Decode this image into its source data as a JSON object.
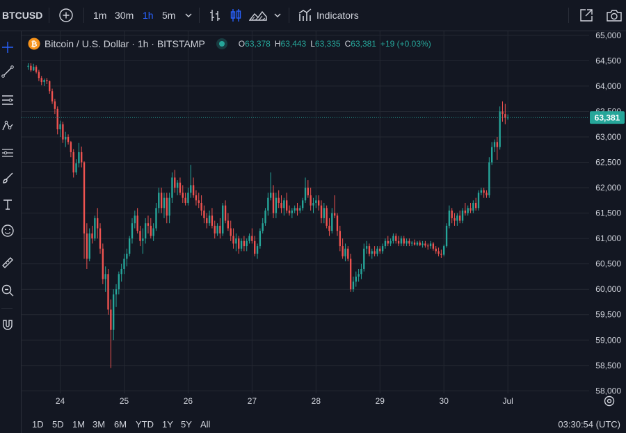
{
  "toolbar": {
    "symbol": "BTCUSD",
    "intervals": [
      "1m",
      "30m",
      "1h",
      "5m"
    ],
    "active_interval": "1h",
    "indicators_label": "Indicators"
  },
  "legend": {
    "title": "Bitcoin / U.S. Dollar · 1h · BITSTAMP",
    "o_label": "O",
    "o_value": "63,378",
    "h_label": "H",
    "h_value": "63,443",
    "l_label": "L",
    "l_value": "63,335",
    "c_label": "C",
    "c_value": "63,381",
    "change": "+19 (+0.03%)"
  },
  "bottom": {
    "ranges": [
      "1D",
      "5D",
      "1M",
      "3M",
      "6M",
      "YTD",
      "1Y",
      "5Y",
      "All"
    ],
    "clock": "03:30:54 (UTC)"
  },
  "colors": {
    "up": "#26a69a",
    "down": "#ef5350",
    "background": "#131722",
    "grid": "#242832",
    "text": "#d1d4dc",
    "accent": "#2962ff"
  },
  "icons": [
    "plus-circle-icon",
    "chevron-down-icon",
    "bar-style-icon",
    "candle-style-icon",
    "area-style-icon",
    "indicators-icon",
    "fullscreen-icon",
    "camera-icon",
    "crosshair-icon",
    "trend-line-icon",
    "fib-icon",
    "pattern-icon",
    "measure-icon",
    "brush-icon",
    "text-icon",
    "emoji-icon",
    "ruler-icon",
    "zoom-icon",
    "magnet-icon",
    "settings-icon",
    "bitcoin-icon"
  ],
  "chart_data": {
    "type": "candlestick",
    "symbol": "Bitcoin / U.S. Dollar",
    "interval": "1h",
    "exchange": "BITSTAMP",
    "y_axis": {
      "ticks": [
        58000,
        58500,
        59000,
        59500,
        60000,
        60500,
        61000,
        61500,
        62000,
        62500,
        63000,
        63500,
        64000,
        64500,
        65000
      ],
      "tick_labels": [
        "58,000",
        "58,500",
        "59,000",
        "59,500",
        "60,000",
        "60,500",
        "61,000",
        "61,500",
        "62,000",
        "62,500",
        "63,000",
        "63,500",
        "64,000",
        "64,500",
        "65,000"
      ],
      "range": [
        57950,
        65080
      ]
    },
    "x_axis": {
      "tick_labels": [
        "24",
        "25",
        "26",
        "27",
        "28",
        "29",
        "30",
        "Jul"
      ],
      "range_hours": [
        -14.5,
        198.5
      ]
    },
    "last_price": 63381,
    "last_price_label": "63,381",
    "grid": true,
    "candles": [
      {
        "o": 64380,
        "h": 64450,
        "l": 64320,
        "c": 64400
      },
      {
        "o": 64400,
        "h": 64450,
        "l": 64280,
        "c": 64310
      },
      {
        "o": 64310,
        "h": 64440,
        "l": 64300,
        "c": 64380
      },
      {
        "o": 64380,
        "h": 64410,
        "l": 64250,
        "c": 64280
      },
      {
        "o": 64280,
        "h": 64320,
        "l": 64100,
        "c": 64160
      },
      {
        "o": 64160,
        "h": 64200,
        "l": 64020,
        "c": 64080
      },
      {
        "o": 64080,
        "h": 64150,
        "l": 64000,
        "c": 64120
      },
      {
        "o": 64120,
        "h": 64160,
        "l": 64040,
        "c": 64100
      },
      {
        "o": 64100,
        "h": 64110,
        "l": 63850,
        "c": 63900
      },
      {
        "o": 63900,
        "h": 63950,
        "l": 63650,
        "c": 63700
      },
      {
        "o": 63700,
        "h": 63750,
        "l": 63450,
        "c": 63550
      },
      {
        "o": 63550,
        "h": 63600,
        "l": 63050,
        "c": 63150
      },
      {
        "o": 63150,
        "h": 63320,
        "l": 63000,
        "c": 63250
      },
      {
        "o": 63250,
        "h": 63300,
        "l": 62880,
        "c": 62950
      },
      {
        "o": 62950,
        "h": 63100,
        "l": 62800,
        "c": 63000
      },
      {
        "o": 63000,
        "h": 63050,
        "l": 62850,
        "c": 62900
      },
      {
        "o": 62900,
        "h": 62920,
        "l": 62600,
        "c": 62700
      },
      {
        "o": 62700,
        "h": 62760,
        "l": 62200,
        "c": 62300
      },
      {
        "o": 62300,
        "h": 62560,
        "l": 62250,
        "c": 62480
      },
      {
        "o": 62480,
        "h": 62880,
        "l": 62400,
        "c": 62700
      },
      {
        "o": 62700,
        "h": 62810,
        "l": 62400,
        "c": 62500
      },
      {
        "o": 62500,
        "h": 62520,
        "l": 60600,
        "c": 61100
      },
      {
        "o": 61100,
        "h": 61300,
        "l": 60400,
        "c": 60600
      },
      {
        "o": 60600,
        "h": 61200,
        "l": 60550,
        "c": 61100
      },
      {
        "o": 61100,
        "h": 61250,
        "l": 60900,
        "c": 61000
      },
      {
        "o": 61000,
        "h": 61450,
        "l": 60950,
        "c": 61400
      },
      {
        "o": 61400,
        "h": 61600,
        "l": 61000,
        "c": 61200
      },
      {
        "o": 61200,
        "h": 61300,
        "l": 60700,
        "c": 60800
      },
      {
        "o": 60800,
        "h": 60900,
        "l": 60100,
        "c": 60200
      },
      {
        "o": 60200,
        "h": 60450,
        "l": 59950,
        "c": 60300
      },
      {
        "o": 60300,
        "h": 60400,
        "l": 59500,
        "c": 59600
      },
      {
        "o": 59600,
        "h": 59800,
        "l": 58450,
        "c": 59200
      },
      {
        "o": 59200,
        "h": 60000,
        "l": 59000,
        "c": 59900
      },
      {
        "o": 59900,
        "h": 60100,
        "l": 59650,
        "c": 60000
      },
      {
        "o": 60000,
        "h": 60350,
        "l": 59900,
        "c": 60300
      },
      {
        "o": 60300,
        "h": 60500,
        "l": 60150,
        "c": 60400
      },
      {
        "o": 60400,
        "h": 60700,
        "l": 60300,
        "c": 60600
      },
      {
        "o": 60600,
        "h": 60800,
        "l": 60450,
        "c": 60700
      },
      {
        "o": 60700,
        "h": 61050,
        "l": 60650,
        "c": 61000
      },
      {
        "o": 61000,
        "h": 61400,
        "l": 60900,
        "c": 61300
      },
      {
        "o": 61300,
        "h": 61550,
        "l": 61200,
        "c": 61450
      },
      {
        "o": 61450,
        "h": 61600,
        "l": 61100,
        "c": 61150
      },
      {
        "o": 61150,
        "h": 61250,
        "l": 60850,
        "c": 60950
      },
      {
        "o": 60950,
        "h": 61200,
        "l": 60700,
        "c": 61000
      },
      {
        "o": 61000,
        "h": 61400,
        "l": 60900,
        "c": 61300
      },
      {
        "o": 61300,
        "h": 61450,
        "l": 61100,
        "c": 61250
      },
      {
        "o": 61250,
        "h": 61400,
        "l": 61000,
        "c": 61050
      },
      {
        "o": 61050,
        "h": 61300,
        "l": 60950,
        "c": 61200
      },
      {
        "o": 61200,
        "h": 61700,
        "l": 61150,
        "c": 61600
      },
      {
        "o": 61600,
        "h": 62000,
        "l": 61500,
        "c": 61900
      },
      {
        "o": 61900,
        "h": 62000,
        "l": 61500,
        "c": 61600
      },
      {
        "o": 61600,
        "h": 61900,
        "l": 61400,
        "c": 61800
      },
      {
        "o": 61800,
        "h": 61900,
        "l": 61300,
        "c": 61450
      },
      {
        "o": 61450,
        "h": 61900,
        "l": 61300,
        "c": 61800
      },
      {
        "o": 61800,
        "h": 62300,
        "l": 61700,
        "c": 62200
      },
      {
        "o": 62200,
        "h": 62350,
        "l": 61900,
        "c": 62000
      },
      {
        "o": 62000,
        "h": 62150,
        "l": 61850,
        "c": 62100
      },
      {
        "o": 62100,
        "h": 62200,
        "l": 61850,
        "c": 61900
      },
      {
        "o": 61900,
        "h": 62050,
        "l": 61700,
        "c": 61800
      },
      {
        "o": 61800,
        "h": 61900,
        "l": 61650,
        "c": 61700
      },
      {
        "o": 61700,
        "h": 62000,
        "l": 61650,
        "c": 61900
      },
      {
        "o": 61900,
        "h": 62450,
        "l": 61800,
        "c": 62050
      },
      {
        "o": 62050,
        "h": 62200,
        "l": 61800,
        "c": 61850
      },
      {
        "o": 61850,
        "h": 61950,
        "l": 61650,
        "c": 61750
      },
      {
        "o": 61750,
        "h": 61900,
        "l": 61600,
        "c": 61700
      },
      {
        "o": 61700,
        "h": 61850,
        "l": 61450,
        "c": 61550
      },
      {
        "o": 61550,
        "h": 61650,
        "l": 61300,
        "c": 61400
      },
      {
        "o": 61400,
        "h": 61500,
        "l": 61200,
        "c": 61300
      },
      {
        "o": 61300,
        "h": 61550,
        "l": 61250,
        "c": 61450
      },
      {
        "o": 61450,
        "h": 61600,
        "l": 61200,
        "c": 61250
      },
      {
        "o": 61250,
        "h": 61350,
        "l": 61000,
        "c": 61100
      },
      {
        "o": 61100,
        "h": 61300,
        "l": 61050,
        "c": 61250
      },
      {
        "o": 61250,
        "h": 61400,
        "l": 61000,
        "c": 61100
      },
      {
        "o": 61100,
        "h": 61700,
        "l": 61050,
        "c": 61650
      },
      {
        "o": 61650,
        "h": 61750,
        "l": 61300,
        "c": 61350
      },
      {
        "o": 61350,
        "h": 61500,
        "l": 61150,
        "c": 61200
      },
      {
        "o": 61200,
        "h": 61350,
        "l": 60950,
        "c": 61050
      },
      {
        "o": 61050,
        "h": 61200,
        "l": 60800,
        "c": 60900
      },
      {
        "o": 60900,
        "h": 61100,
        "l": 60750,
        "c": 61000
      },
      {
        "o": 61000,
        "h": 61050,
        "l": 60700,
        "c": 60800
      },
      {
        "o": 60800,
        "h": 61000,
        "l": 60750,
        "c": 60950
      },
      {
        "o": 60950,
        "h": 61050,
        "l": 60750,
        "c": 60850
      },
      {
        "o": 60850,
        "h": 61000,
        "l": 60750,
        "c": 60950
      },
      {
        "o": 60950,
        "h": 61100,
        "l": 60900,
        "c": 61050
      },
      {
        "o": 61050,
        "h": 61200,
        "l": 60900,
        "c": 60950
      },
      {
        "o": 60950,
        "h": 61050,
        "l": 60650,
        "c": 60700
      },
      {
        "o": 60700,
        "h": 60900,
        "l": 60600,
        "c": 60850
      },
      {
        "o": 60850,
        "h": 61200,
        "l": 60800,
        "c": 61150
      },
      {
        "o": 61150,
        "h": 61400,
        "l": 61100,
        "c": 61300
      },
      {
        "o": 61300,
        "h": 61600,
        "l": 61250,
        "c": 61550
      },
      {
        "o": 61550,
        "h": 61900,
        "l": 61450,
        "c": 61800
      },
      {
        "o": 61800,
        "h": 62300,
        "l": 61750,
        "c": 61900
      },
      {
        "o": 61900,
        "h": 62050,
        "l": 61400,
        "c": 61500
      },
      {
        "o": 61500,
        "h": 61900,
        "l": 61400,
        "c": 61800
      },
      {
        "o": 61800,
        "h": 61950,
        "l": 61600,
        "c": 61700
      },
      {
        "o": 61700,
        "h": 61850,
        "l": 61500,
        "c": 61600
      },
      {
        "o": 61600,
        "h": 61800,
        "l": 61450,
        "c": 61750
      },
      {
        "o": 61750,
        "h": 61900,
        "l": 61500,
        "c": 61550
      },
      {
        "o": 61550,
        "h": 61650,
        "l": 61450,
        "c": 61500
      },
      {
        "o": 61500,
        "h": 61600,
        "l": 61400,
        "c": 61550
      },
      {
        "o": 61550,
        "h": 61650,
        "l": 61500,
        "c": 61600
      },
      {
        "o": 61600,
        "h": 61700,
        "l": 61450,
        "c": 61550
      },
      {
        "o": 61550,
        "h": 61650,
        "l": 61500,
        "c": 61600
      },
      {
        "o": 61600,
        "h": 61800,
        "l": 61550,
        "c": 61750
      },
      {
        "o": 61750,
        "h": 62200,
        "l": 61700,
        "c": 62000
      },
      {
        "o": 62000,
        "h": 62150,
        "l": 61800,
        "c": 61850
      },
      {
        "o": 61850,
        "h": 62000,
        "l": 61550,
        "c": 61650
      },
      {
        "o": 61650,
        "h": 61800,
        "l": 61500,
        "c": 61700
      },
      {
        "o": 61700,
        "h": 61850,
        "l": 61600,
        "c": 61750
      },
      {
        "o": 61750,
        "h": 61850,
        "l": 61550,
        "c": 61650
      },
      {
        "o": 61650,
        "h": 61750,
        "l": 61300,
        "c": 61400
      },
      {
        "o": 61400,
        "h": 61700,
        "l": 61300,
        "c": 61600
      },
      {
        "o": 61600,
        "h": 61650,
        "l": 61200,
        "c": 61250
      },
      {
        "o": 61250,
        "h": 61400,
        "l": 61050,
        "c": 61150
      },
      {
        "o": 61150,
        "h": 61600,
        "l": 61100,
        "c": 61500
      },
      {
        "o": 61500,
        "h": 61850,
        "l": 61400,
        "c": 61450
      },
      {
        "o": 61450,
        "h": 61500,
        "l": 61050,
        "c": 61150
      },
      {
        "o": 61150,
        "h": 61250,
        "l": 60750,
        "c": 60850
      },
      {
        "o": 60850,
        "h": 61000,
        "l": 60600,
        "c": 60650
      },
      {
        "o": 60650,
        "h": 60900,
        "l": 60550,
        "c": 60800
      },
      {
        "o": 60800,
        "h": 60850,
        "l": 60550,
        "c": 60600
      },
      {
        "o": 60600,
        "h": 60700,
        "l": 59950,
        "c": 60000
      },
      {
        "o": 60000,
        "h": 60250,
        "l": 59950,
        "c": 60150
      },
      {
        "o": 60150,
        "h": 60350,
        "l": 60050,
        "c": 60250
      },
      {
        "o": 60250,
        "h": 60400,
        "l": 60150,
        "c": 60300
      },
      {
        "o": 60300,
        "h": 60500,
        "l": 60200,
        "c": 60400
      },
      {
        "o": 60400,
        "h": 60900,
        "l": 60350,
        "c": 60800
      },
      {
        "o": 60800,
        "h": 60950,
        "l": 60700,
        "c": 60850
      },
      {
        "o": 60850,
        "h": 60900,
        "l": 60650,
        "c": 60700
      },
      {
        "o": 60700,
        "h": 60800,
        "l": 60600,
        "c": 60750
      },
      {
        "o": 60750,
        "h": 60850,
        "l": 60650,
        "c": 60700
      },
      {
        "o": 60700,
        "h": 60850,
        "l": 60650,
        "c": 60800
      },
      {
        "o": 60800,
        "h": 60850,
        "l": 60700,
        "c": 60750
      },
      {
        "o": 60750,
        "h": 60900,
        "l": 60700,
        "c": 60850
      },
      {
        "o": 60850,
        "h": 61000,
        "l": 60800,
        "c": 60950
      },
      {
        "o": 60950,
        "h": 61050,
        "l": 60850,
        "c": 60900
      },
      {
        "o": 60900,
        "h": 61000,
        "l": 60850,
        "c": 60950
      },
      {
        "o": 60950,
        "h": 61100,
        "l": 60900,
        "c": 61050
      },
      {
        "o": 61050,
        "h": 61100,
        "l": 60900,
        "c": 60950
      },
      {
        "o": 60950,
        "h": 61050,
        "l": 60850,
        "c": 60900
      },
      {
        "o": 60900,
        "h": 61050,
        "l": 60850,
        "c": 61000
      },
      {
        "o": 61000,
        "h": 61050,
        "l": 60850,
        "c": 60900
      },
      {
        "o": 60900,
        "h": 61000,
        "l": 60850,
        "c": 60950
      },
      {
        "o": 60950,
        "h": 61000,
        "l": 60850,
        "c": 60900
      },
      {
        "o": 60900,
        "h": 60950,
        "l": 60850,
        "c": 60920
      },
      {
        "o": 60920,
        "h": 60980,
        "l": 60860,
        "c": 60880
      },
      {
        "o": 60880,
        "h": 60950,
        "l": 60850,
        "c": 60920
      },
      {
        "o": 60920,
        "h": 60960,
        "l": 60850,
        "c": 60870
      },
      {
        "o": 60870,
        "h": 60950,
        "l": 60820,
        "c": 60900
      },
      {
        "o": 60900,
        "h": 60950,
        "l": 60820,
        "c": 60860
      },
      {
        "o": 60860,
        "h": 60900,
        "l": 60780,
        "c": 60850
      },
      {
        "o": 60850,
        "h": 60950,
        "l": 60800,
        "c": 60900
      },
      {
        "o": 60900,
        "h": 60930,
        "l": 60760,
        "c": 60800
      },
      {
        "o": 60800,
        "h": 60850,
        "l": 60700,
        "c": 60750
      },
      {
        "o": 60750,
        "h": 60820,
        "l": 60650,
        "c": 60700
      },
      {
        "o": 60700,
        "h": 60780,
        "l": 60620,
        "c": 60680
      },
      {
        "o": 60680,
        "h": 60880,
        "l": 60650,
        "c": 60850
      },
      {
        "o": 60850,
        "h": 61300,
        "l": 60820,
        "c": 61250
      },
      {
        "o": 61250,
        "h": 61650,
        "l": 61200,
        "c": 61550
      },
      {
        "o": 61550,
        "h": 61600,
        "l": 61300,
        "c": 61400
      },
      {
        "o": 61400,
        "h": 61500,
        "l": 61250,
        "c": 61350
      },
      {
        "o": 61350,
        "h": 61500,
        "l": 61250,
        "c": 61450
      },
      {
        "o": 61450,
        "h": 61550,
        "l": 61300,
        "c": 61350
      },
      {
        "o": 61350,
        "h": 61600,
        "l": 61300,
        "c": 61550
      },
      {
        "o": 61550,
        "h": 61700,
        "l": 61450,
        "c": 61500
      },
      {
        "o": 61500,
        "h": 61650,
        "l": 61450,
        "c": 61600
      },
      {
        "o": 61600,
        "h": 61700,
        "l": 61500,
        "c": 61550
      },
      {
        "o": 61550,
        "h": 61750,
        "l": 61500,
        "c": 61700
      },
      {
        "o": 61700,
        "h": 61800,
        "l": 61550,
        "c": 61600
      },
      {
        "o": 61600,
        "h": 61950,
        "l": 61550,
        "c": 61900
      },
      {
        "o": 61900,
        "h": 62000,
        "l": 61850,
        "c": 61950
      },
      {
        "o": 61950,
        "h": 62000,
        "l": 61800,
        "c": 61900
      },
      {
        "o": 61900,
        "h": 61950,
        "l": 61800,
        "c": 61850
      },
      {
        "o": 61850,
        "h": 62600,
        "l": 61800,
        "c": 62500
      },
      {
        "o": 62500,
        "h": 62900,
        "l": 62450,
        "c": 62800
      },
      {
        "o": 62800,
        "h": 62950,
        "l": 62700,
        "c": 62900
      },
      {
        "o": 62900,
        "h": 63000,
        "l": 62550,
        "c": 62800
      },
      {
        "o": 62800,
        "h": 63600,
        "l": 62750,
        "c": 63500
      },
      {
        "o": 63500,
        "h": 63700,
        "l": 63300,
        "c": 63450
      },
      {
        "o": 63450,
        "h": 63650,
        "l": 63250,
        "c": 63378
      },
      {
        "o": 63378,
        "h": 63443,
        "l": 63335,
        "c": 63381
      }
    ]
  }
}
